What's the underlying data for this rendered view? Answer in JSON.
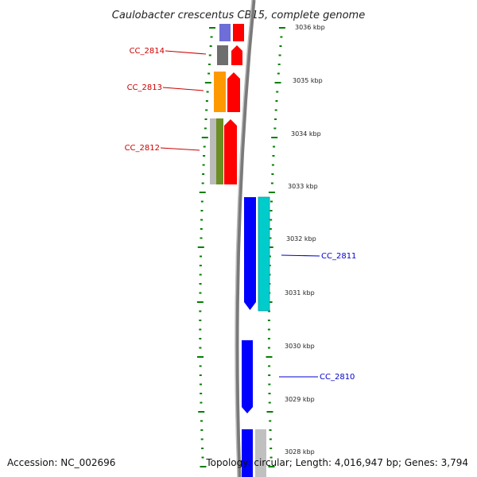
{
  "header": {
    "title": "Caulobacter crescentus CB15, complete genome"
  },
  "footer": {
    "accession": "Accession: NC_002696",
    "summary": "Topology: circular; Length: 4,016,947 bp; Genes: 3,794"
  },
  "scale": {
    "ticks": [
      "3036 kbp",
      "3035 kbp",
      "3034 kbp",
      "3033 kbp",
      "3032 kbp",
      "3031 kbp",
      "3030 kbp",
      "3029 kbp",
      "3028 kbp"
    ]
  },
  "genes": {
    "reverse": [
      "CC_2814",
      "CC_2813",
      "CC_2812"
    ],
    "forward": [
      "CC_2811",
      "CC_2810"
    ]
  },
  "colors": {
    "reverse_label": "#cc0000",
    "forward_label": "#0000cc",
    "reverse_strand": "#ff0000",
    "forward_strand": "#0000ff",
    "cds_cyan": "#00cccc",
    "dotted_ring": "#008000",
    "backbone": "#808080"
  }
}
